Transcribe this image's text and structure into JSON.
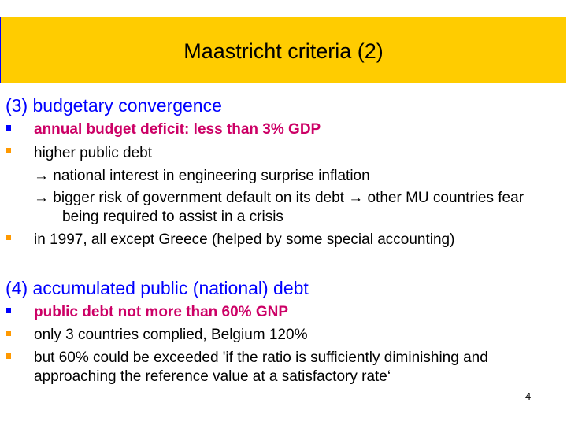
{
  "title": "Maastricht criteria (2)",
  "colors": {
    "header_bg": "#FFCC00",
    "header_border": "#0000FF",
    "heading": "#0000FF",
    "highlight": "#CC0066",
    "bullet_primary": "#0000FF",
    "bullet_secondary": "#FF9900"
  },
  "section3": {
    "heading": "(3) budgetary convergence",
    "bullet1": "annual budget deficit: less than 3% GDP",
    "bullet2": "higher public debt",
    "sub1": "→ national interest in engineering surprise inflation",
    "sub2": "→ bigger risk of government default on its debt → other MU countries fear",
    "sub2_cont": "being required to assist in a crisis",
    "bullet3": "in 1997, all except Greece (helped by some special accounting)"
  },
  "section4": {
    "heading": "(4)  accumulated public (national) debt",
    "bullet1": "public debt not more than 60% GNP",
    "bullet2": "only 3 countries complied, Belgium 120%",
    "bullet3": "but 60%  could be exceeded 'if the ratio is sufficiently diminishing and",
    "bullet3_cont": "approaching the reference value at a satisfactory rate‘"
  },
  "page_number": "4"
}
